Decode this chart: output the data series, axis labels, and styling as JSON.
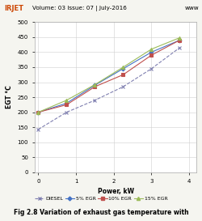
{
  "title": "Fig 2.8 Variation of exhaust gas temperature with",
  "xlabel": "Power, kW",
  "ylabel": "EGT °C",
  "xlim": [
    -0.1,
    4.2
  ],
  "ylim": [
    0,
    500
  ],
  "xticks": [
    0,
    1,
    2,
    3,
    4
  ],
  "yticks": [
    0,
    50,
    100,
    150,
    200,
    250,
    300,
    350,
    400,
    450,
    500
  ],
  "series": [
    {
      "label": "DIESEL",
      "x": [
        0,
        0.75,
        1.5,
        2.25,
        3.0,
        3.75
      ],
      "y": [
        143,
        200,
        240,
        285,
        345,
        415
      ],
      "color": "#7f7fb0",
      "marker": "x",
      "linestyle": "--",
      "markersize": 3
    },
    {
      "label": "5% EGR",
      "x": [
        0,
        0.75,
        1.5,
        2.25,
        3.0,
        3.75
      ],
      "y": [
        200,
        230,
        290,
        345,
        400,
        440
      ],
      "color": "#4472c4",
      "marker": "D",
      "linestyle": "-",
      "markersize": 2.5
    },
    {
      "label": "10% EGR",
      "x": [
        0,
        0.75,
        1.5,
        2.25,
        3.0,
        3.75
      ],
      "y": [
        200,
        225,
        285,
        325,
        390,
        440
      ],
      "color": "#c0504d",
      "marker": "s",
      "linestyle": "-",
      "markersize": 3
    },
    {
      "label": "15% EGR",
      "x": [
        0,
        0.75,
        1.5,
        2.25,
        3.0,
        3.75
      ],
      "y": [
        200,
        240,
        292,
        350,
        410,
        448
      ],
      "color": "#9bbb59",
      "marker": "^",
      "linestyle": "-",
      "markersize": 3
    }
  ],
  "header_text": "Volume: 03 Issue: 07 | July-2016",
  "header_left": "IRJET",
  "header_right": "www",
  "bg_color": "#f5f5f0",
  "plot_bg_color": "#ffffff",
  "grid_color": "#d0d0d0",
  "header_bg": "#e0e0d8",
  "caption_fontsize": 5.5,
  "axis_label_fontsize": 5.5,
  "tick_fontsize": 5,
  "legend_fontsize": 4.5
}
